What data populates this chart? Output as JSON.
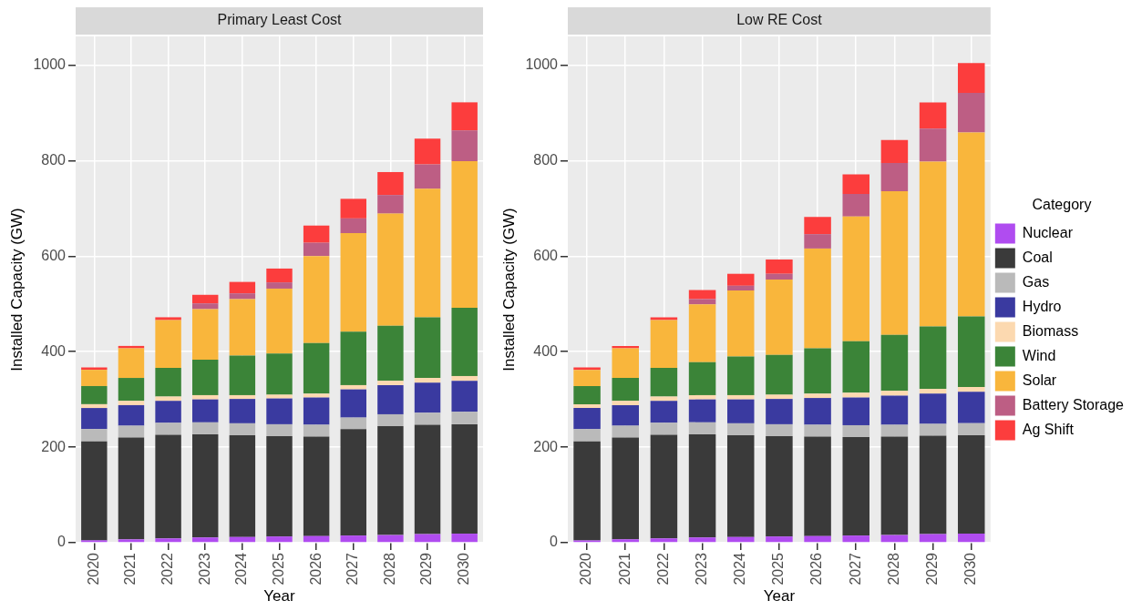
{
  "chart_data": [
    {
      "type": "bar",
      "title": "Primary Least Cost",
      "xlabel": "Year",
      "ylabel": "Installed Capacity (GW)",
      "stacked": true,
      "grid": true,
      "legend": false,
      "categories": [
        "2020",
        "2021",
        "2022",
        "2023",
        "2024",
        "2025",
        "2026",
        "2027",
        "2028",
        "2029",
        "2030"
      ],
      "ylim": [
        0,
        1060
      ],
      "yticks": [
        0,
        200,
        400,
        600,
        800,
        1000
      ],
      "series": [
        {
          "color": "#b04cf0",
          "values": [
            5,
            7,
            9,
            11,
            12,
            13,
            14,
            15,
            16,
            18,
            19
          ]
        },
        {
          "color": "#3a3a3a",
          "values": [
            207,
            213,
            217,
            216,
            213,
            210,
            208,
            223,
            228,
            229,
            229
          ]
        },
        {
          "color": "#bababa",
          "values": [
            26,
            25,
            25,
            25,
            25,
            25,
            25,
            24,
            25,
            25,
            26
          ]
        },
        {
          "color": "#3a3aa0",
          "values": [
            44,
            43,
            46,
            48,
            51,
            54,
            57,
            59,
            61,
            63,
            65
          ]
        },
        {
          "color": "#fcd9b0",
          "values": [
            8,
            9,
            9,
            9,
            8,
            8,
            8,
            9,
            9,
            10,
            10
          ]
        },
        {
          "color": "#3b8438",
          "values": [
            38,
            48,
            60,
            74,
            83,
            86,
            106,
            112,
            115,
            127,
            143
          ]
        },
        {
          "color": "#f9b63c",
          "values": [
            34,
            62,
            100,
            106,
            118,
            136,
            182,
            206,
            235,
            269,
            307
          ]
        },
        {
          "color": "#bd5e84",
          "values": [
            null,
            null,
            null,
            12,
            12,
            13,
            28,
            31,
            39,
            51,
            64
          ]
        },
        {
          "color": "#fc3d3d",
          "values": [
            5,
            5,
            6,
            18,
            24,
            29,
            36,
            41,
            48,
            54,
            59
          ]
        }
      ]
    },
    {
      "type": "bar",
      "title": "Low RE Cost",
      "xlabel": "Year",
      "ylabel": "Installed Capacity (GW)",
      "stacked": true,
      "grid": true,
      "legend": "right",
      "legend_title": "Category",
      "categories": [
        "2020",
        "2021",
        "2022",
        "2023",
        "2024",
        "2025",
        "2026",
        "2027",
        "2028",
        "2029",
        "2030"
      ],
      "ylim": [
        0,
        1060
      ],
      "yticks": [
        0,
        200,
        400,
        600,
        800,
        1000
      ],
      "series": [
        {
          "name": "Nuclear",
          "color": "#b04cf0",
          "values": [
            5,
            7,
            9,
            11,
            12,
            13,
            14,
            15,
            16,
            18,
            19
          ]
        },
        {
          "name": "Coal",
          "color": "#3a3a3a",
          "values": [
            207,
            213,
            217,
            216,
            213,
            210,
            208,
            206,
            206,
            206,
            206
          ]
        },
        {
          "name": "Gas",
          "color": "#bababa",
          "values": [
            26,
            25,
            25,
            25,
            25,
            25,
            25,
            25,
            25,
            25,
            25
          ]
        },
        {
          "name": "Hydro",
          "color": "#3a3aa0",
          "values": [
            44,
            43,
            46,
            48,
            50,
            53,
            56,
            58,
            61,
            63,
            66
          ]
        },
        {
          "name": "Biomass",
          "color": "#fcd9b0",
          "values": [
            8,
            9,
            9,
            9,
            9,
            9,
            9,
            10,
            10,
            10,
            10
          ]
        },
        {
          "name": "Wind",
          "color": "#3b8438",
          "values": [
            38,
            48,
            60,
            69,
            81,
            83,
            95,
            108,
            117,
            131,
            148
          ]
        },
        {
          "name": "Solar",
          "color": "#f9b63c",
          "values": [
            34,
            62,
            100,
            121,
            138,
            158,
            209,
            261,
            301,
            345,
            385
          ]
        },
        {
          "name": "Battery Storage",
          "color": "#bd5e84",
          "values": [
            null,
            null,
            null,
            11,
            10,
            12,
            30,
            47,
            59,
            69,
            83
          ]
        },
        {
          "name": "Ag Shift",
          "color": "#fc3d3d",
          "values": [
            5,
            5,
            6,
            19,
            25,
            30,
            36,
            41,
            48,
            55,
            62
          ]
        }
      ]
    }
  ]
}
